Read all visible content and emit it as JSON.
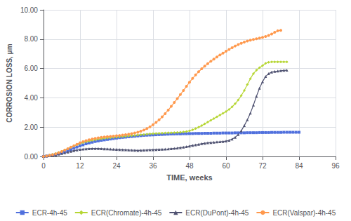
{
  "chart_data": {
    "type": "line",
    "xlabel": "TIME, weeks",
    "ylabel": "CORROSION LOSS, μm",
    "xlim": [
      0,
      96
    ],
    "ylim": [
      0,
      10.0
    ],
    "xticks": [
      0,
      12,
      24,
      36,
      48,
      60,
      72,
      84,
      96
    ],
    "yticks": [
      {
        "value": 0.0,
        "label": "0.00"
      },
      {
        "value": 2.0,
        "label": "2.00"
      },
      {
        "value": 4.0,
        "label": "4.00"
      },
      {
        "value": 6.0,
        "label": "6.00"
      },
      {
        "value": 8.0,
        "label": "8.00"
      },
      {
        "value": 10.0,
        "label": "10.00"
      }
    ],
    "grid": true,
    "legend": "bottom",
    "series": [
      {
        "name": "ECR-4h-45",
        "marker": "square",
        "x": [
          0,
          1,
          2,
          3,
          4,
          5,
          6,
          7,
          8,
          9,
          10,
          11,
          12,
          13,
          14,
          15,
          16,
          17,
          18,
          19,
          20,
          21,
          22,
          23,
          24,
          25,
          26,
          27,
          28,
          29,
          30,
          31,
          32,
          33,
          34,
          35,
          36,
          37,
          38,
          39,
          40,
          41,
          42,
          43,
          44,
          45,
          46,
          47,
          48,
          49,
          50,
          51,
          52,
          53,
          54,
          55,
          56,
          57,
          58,
          59,
          60,
          61,
          62,
          63,
          64,
          65,
          66,
          67,
          68,
          69,
          70,
          71,
          72,
          73,
          74,
          75,
          76,
          77,
          78,
          79,
          80,
          81,
          82,
          83,
          84
        ],
        "values": [
          0.0,
          0.03,
          0.06,
          0.1,
          0.14,
          0.19,
          0.25,
          0.32,
          0.4,
          0.48,
          0.56,
          0.64,
          0.72,
          0.79,
          0.86,
          0.92,
          0.97,
          1.02,
          1.06,
          1.1,
          1.13,
          1.16,
          1.19,
          1.22,
          1.25,
          1.28,
          1.3,
          1.32,
          1.34,
          1.36,
          1.38,
          1.4,
          1.42,
          1.44,
          1.45,
          1.46,
          1.47,
          1.48,
          1.49,
          1.5,
          1.51,
          1.52,
          1.53,
          1.53,
          1.54,
          1.54,
          1.55,
          1.55,
          1.56,
          1.56,
          1.57,
          1.57,
          1.57,
          1.58,
          1.58,
          1.58,
          1.59,
          1.59,
          1.59,
          1.6,
          1.6,
          1.6,
          1.6,
          1.61,
          1.61,
          1.61,
          1.61,
          1.62,
          1.62,
          1.62,
          1.62,
          1.63,
          1.63,
          1.63,
          1.63,
          1.64,
          1.64,
          1.64,
          1.64,
          1.65,
          1.65,
          1.65,
          1.65,
          1.65,
          1.65
        ]
      },
      {
        "name": "ECR(Chromate)-4h-45",
        "marker": "diamond",
        "x": [
          0,
          1,
          2,
          3,
          4,
          5,
          6,
          7,
          8,
          9,
          10,
          11,
          12,
          13,
          14,
          15,
          16,
          17,
          18,
          19,
          20,
          21,
          22,
          23,
          24,
          25,
          26,
          27,
          28,
          29,
          30,
          31,
          32,
          33,
          34,
          35,
          36,
          37,
          38,
          39,
          40,
          41,
          42,
          43,
          44,
          45,
          46,
          47,
          48,
          49,
          50,
          51,
          52,
          53,
          54,
          55,
          56,
          57,
          58,
          59,
          60,
          61,
          62,
          63,
          64,
          65,
          66,
          67,
          68,
          69,
          70,
          71,
          72,
          73,
          74,
          75,
          76,
          77,
          78,
          79,
          80
        ],
        "values": [
          0.0,
          0.04,
          0.09,
          0.14,
          0.2,
          0.27,
          0.35,
          0.44,
          0.53,
          0.62,
          0.71,
          0.8,
          0.88,
          0.94,
          1.0,
          1.05,
          1.1,
          1.14,
          1.18,
          1.21,
          1.24,
          1.26,
          1.28,
          1.3,
          1.32,
          1.34,
          1.36,
          1.38,
          1.4,
          1.42,
          1.44,
          1.46,
          1.48,
          1.5,
          1.52,
          1.54,
          1.56,
          1.57,
          1.58,
          1.59,
          1.6,
          1.61,
          1.62,
          1.63,
          1.64,
          1.65,
          1.67,
          1.7,
          1.75,
          1.82,
          1.9,
          2.0,
          2.1,
          2.22,
          2.34,
          2.46,
          2.58,
          2.7,
          2.82,
          2.94,
          3.06,
          3.2,
          3.38,
          3.6,
          3.85,
          4.15,
          4.5,
          4.9,
          5.3,
          5.65,
          5.88,
          6.05,
          6.2,
          6.35,
          6.42,
          6.45,
          6.45,
          6.45,
          6.45,
          6.45,
          6.45
        ]
      },
      {
        "name": "ECR(DuPont)-4h-45",
        "marker": "triangle",
        "x": [
          0,
          1,
          2,
          3,
          4,
          5,
          6,
          7,
          8,
          9,
          10,
          11,
          12,
          13,
          14,
          15,
          16,
          17,
          18,
          19,
          20,
          21,
          22,
          23,
          24,
          25,
          26,
          27,
          28,
          29,
          30,
          31,
          32,
          33,
          34,
          35,
          36,
          37,
          38,
          39,
          40,
          41,
          42,
          43,
          44,
          45,
          46,
          47,
          48,
          49,
          50,
          51,
          52,
          53,
          54,
          55,
          56,
          57,
          58,
          59,
          60,
          61,
          62,
          63,
          64,
          65,
          66,
          67,
          68,
          69,
          70,
          71,
          72,
          73,
          74,
          75,
          76,
          77,
          78,
          79,
          80
        ],
        "values": [
          0.0,
          0.02,
          0.05,
          0.08,
          0.11,
          0.15,
          0.2,
          0.25,
          0.3,
          0.35,
          0.4,
          0.44,
          0.48,
          0.5,
          0.52,
          0.53,
          0.54,
          0.54,
          0.54,
          0.53,
          0.52,
          0.51,
          0.5,
          0.49,
          0.48,
          0.47,
          0.46,
          0.45,
          0.44,
          0.43,
          0.42,
          0.41,
          0.42,
          0.43,
          0.44,
          0.45,
          0.46,
          0.47,
          0.48,
          0.49,
          0.5,
          0.51,
          0.53,
          0.55,
          0.57,
          0.6,
          0.63,
          0.67,
          0.71,
          0.75,
          0.79,
          0.83,
          0.87,
          0.9,
          0.93,
          0.95,
          0.97,
          0.99,
          1.0,
          1.02,
          1.05,
          1.1,
          1.18,
          1.3,
          1.5,
          1.75,
          2.1,
          2.5,
          2.95,
          3.5,
          4.1,
          4.65,
          5.1,
          5.45,
          5.65,
          5.75,
          5.8,
          5.82,
          5.85,
          5.87,
          5.88
        ]
      },
      {
        "name": "ECR(Valspar)-4h-45",
        "marker": "circle",
        "x": [
          0,
          1,
          2,
          3,
          4,
          5,
          6,
          7,
          8,
          9,
          10,
          11,
          12,
          13,
          14,
          15,
          16,
          17,
          18,
          19,
          20,
          21,
          22,
          23,
          24,
          25,
          26,
          27,
          28,
          29,
          30,
          31,
          32,
          33,
          34,
          35,
          36,
          37,
          38,
          39,
          40,
          41,
          42,
          43,
          44,
          45,
          46,
          47,
          48,
          49,
          50,
          51,
          52,
          53,
          54,
          55,
          56,
          57,
          58,
          59,
          60,
          61,
          62,
          63,
          64,
          65,
          66,
          67,
          68,
          69,
          70,
          71,
          72,
          73,
          74,
          75,
          76,
          77,
          78
        ],
        "values": [
          0.0,
          0.03,
          0.07,
          0.12,
          0.18,
          0.25,
          0.33,
          0.43,
          0.53,
          0.63,
          0.73,
          0.83,
          0.93,
          1.01,
          1.08,
          1.14,
          1.19,
          1.23,
          1.27,
          1.3,
          1.33,
          1.35,
          1.37,
          1.39,
          1.41,
          1.43,
          1.46,
          1.49,
          1.52,
          1.56,
          1.6,
          1.65,
          1.72,
          1.8,
          1.9,
          2.02,
          2.16,
          2.32,
          2.5,
          2.7,
          2.92,
          3.16,
          3.42,
          3.68,
          3.95,
          4.22,
          4.5,
          4.78,
          5.06,
          5.32,
          5.56,
          5.78,
          5.98,
          6.16,
          6.33,
          6.49,
          6.64,
          6.78,
          6.92,
          7.05,
          7.18,
          7.3,
          7.42,
          7.53,
          7.63,
          7.72,
          7.8,
          7.87,
          7.93,
          7.98,
          8.03,
          8.07,
          8.12,
          8.18,
          8.25,
          8.35,
          8.47,
          8.57,
          8.6
        ]
      }
    ]
  }
}
